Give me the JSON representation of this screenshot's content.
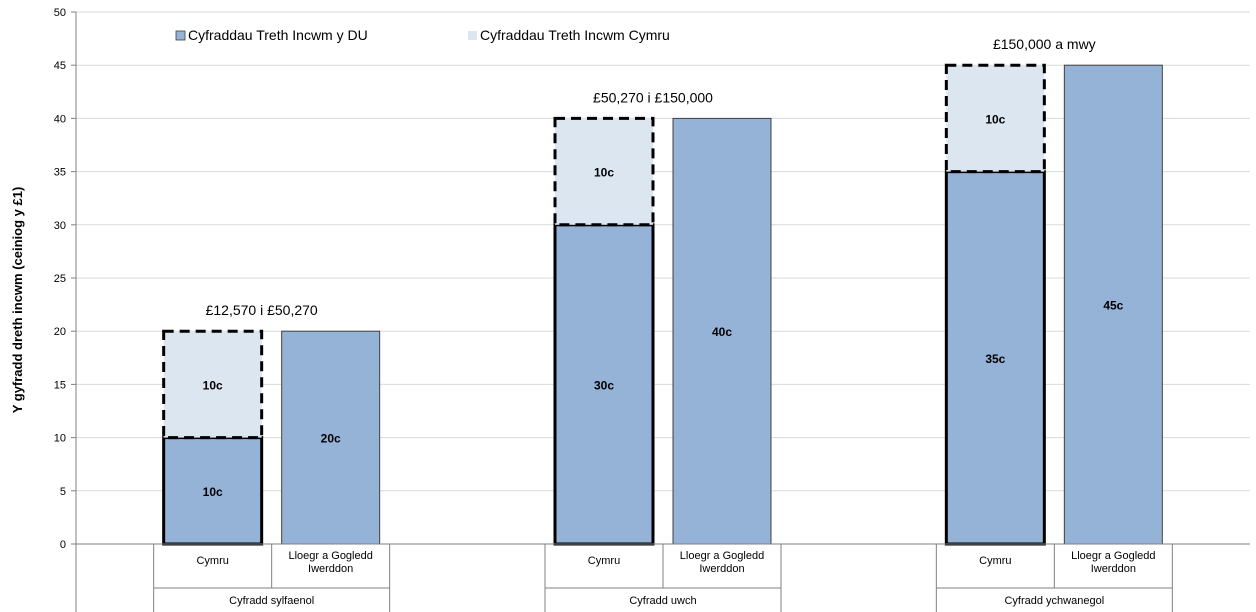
{
  "chart_data": {
    "type": "bar",
    "stacked": true,
    "ylabel": "Y gyfradd dreth incwm (ceiniog y £1)",
    "ylim": [
      0,
      50
    ],
    "yticks": [
      0,
      5,
      10,
      15,
      20,
      25,
      30,
      35,
      40,
      45,
      50
    ],
    "grid": true,
    "legend_position": "top-left",
    "groups": [
      {
        "name": "Cyfradd sylfaenol",
        "band_label": "£12,570 i £50,270",
        "bars": [
          {
            "category": "Cymru",
            "uk": 10,
            "wales": 10,
            "uk_label": "10c",
            "wales_label": "10c"
          },
          {
            "category": "Lloegr a Gogledd Iwerddon",
            "uk": 20,
            "wales": 0,
            "uk_label": "20c",
            "wales_label": ""
          }
        ]
      },
      {
        "name": "Cyfradd uwch",
        "band_label": "£50,270 i £150,000",
        "bars": [
          {
            "category": "Cymru",
            "uk": 30,
            "wales": 10,
            "uk_label": "30c",
            "wales_label": "10c"
          },
          {
            "category": "Lloegr a Gogledd Iwerddon",
            "uk": 40,
            "wales": 0,
            "uk_label": "40c",
            "wales_label": ""
          }
        ]
      },
      {
        "name": "Cyfradd ychwanegol",
        "band_label": "£150,000 a mwy",
        "bars": [
          {
            "category": "Cymru",
            "uk": 35,
            "wales": 10,
            "uk_label": "35c",
            "wales_label": "10c"
          },
          {
            "category": "Lloegr a Gogledd Iwerddon",
            "uk": 45,
            "wales": 0,
            "uk_label": "45c",
            "wales_label": ""
          }
        ]
      }
    ],
    "series": [
      {
        "key": "uk",
        "name": "Cyfraddau Treth Incwm y DU",
        "color": "#95b3d7"
      },
      {
        "key": "wales",
        "name": "Cyfraddau Treth Incwm Cymru",
        "color": "#dce6f1"
      }
    ]
  }
}
